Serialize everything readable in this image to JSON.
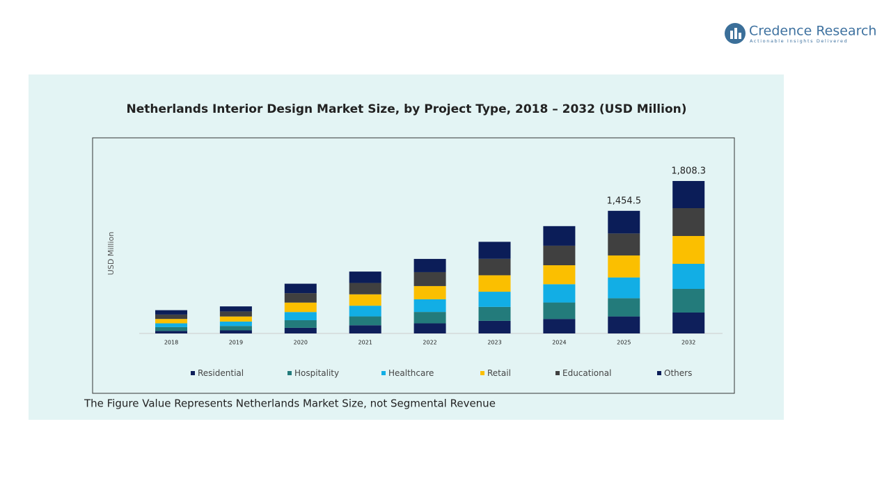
{
  "logo": {
    "name": "Credence Research",
    "tagline": "Actionable Insights Delivered"
  },
  "chart_data": {
    "type": "stacked-bar",
    "title": "Netherlands Interior Design Market Size, by Project Type, 2018 – 2032 (USD Million)",
    "y_label": "USD Million",
    "categories": [
      "2018",
      "2019",
      "2020",
      "2021",
      "2022",
      "2023",
      "2024",
      "2025",
      "2032"
    ],
    "series": [
      {
        "name": "Residential",
        "color": "#0e1f5b",
        "values": [
          30,
          37,
          67,
          97,
          120,
          150,
          172,
          201.5,
          247.7
        ]
      },
      {
        "name": "Hospitality",
        "color": "#237b7b",
        "values": [
          45,
          52,
          90,
          105,
          135,
          165,
          195,
          216.5,
          280.7
        ]
      },
      {
        "name": "Healthcare",
        "color": "#12aee5",
        "values": [
          45,
          52,
          97,
          127,
          150,
          180,
          217,
          246,
          297.3
        ]
      },
      {
        "name": "Retail",
        "color": "#fbbf00",
        "values": [
          52,
          60,
          112,
          135,
          157,
          195,
          225,
          261,
          330.3
        ]
      },
      {
        "name": "Educational",
        "color": "#404040",
        "values": [
          52,
          60,
          112,
          135,
          165,
          195,
          232,
          261,
          330.3
        ]
      },
      {
        "name": "Others",
        "color": "#0b1d58",
        "values": [
          52,
          60,
          112,
          135,
          157,
          202,
          232,
          268.5,
          322
        ]
      }
    ],
    "total_labels": [
      null,
      null,
      null,
      null,
      null,
      null,
      null,
      "1,454.5",
      "1,808.3"
    ],
    "footnote": "The Figure Value Represents Netherlands Market Size, not Segmental Revenue"
  }
}
